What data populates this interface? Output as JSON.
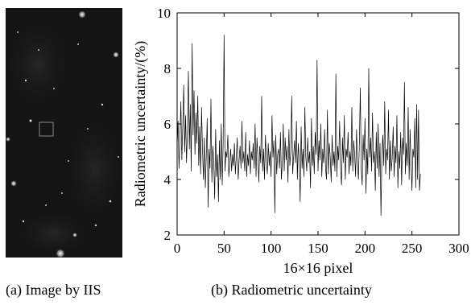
{
  "figure": {
    "caption_a": "(a) Image by IIS",
    "caption_b": "(b) Radiometric uncertainty"
  },
  "colors": {
    "image_background": "#141414",
    "plot_line": "#000000",
    "axis": "#000000",
    "roi_box": "#8a8a8a"
  },
  "chart_data": {
    "type": "line",
    "title": "",
    "xlabel": "16×16 pixel",
    "ylabel": "Radiometric uncertainty/(%)",
    "xlim": [
      0,
      300
    ],
    "ylim": [
      2,
      10
    ],
    "xticks": [
      0,
      50,
      100,
      150,
      200,
      250,
      300
    ],
    "yticks": [
      2,
      4,
      6,
      8,
      10
    ],
    "grid": false,
    "legend": "none",
    "series": [
      {
        "values": [
          5.2,
          6.1,
          4.4,
          5.5,
          6.8,
          4.7,
          5.9,
          7.4,
          5.0,
          6.3,
          4.6,
          5.8,
          7.9,
          5.1,
          6.7,
          4.3,
          8.9,
          5.6,
          7.2,
          4.9,
          6.4,
          5.3,
          7.0,
          4.5,
          5.9,
          4.2,
          6.6,
          5.1,
          4.0,
          5.5,
          3.7,
          4.8,
          6.2,
          3.0,
          5.1,
          4.4,
          6.9,
          3.9,
          5.2,
          4.6,
          3.3,
          5.8,
          4.1,
          4.9,
          3.2,
          5.4,
          4.0,
          6.0,
          3.8,
          5.3,
          9.2,
          4.3,
          5.0,
          4.8,
          5.6,
          4.1,
          4.6,
          5.1,
          4.3,
          4.9,
          4.5,
          5.3,
          4.2,
          4.8,
          5.5,
          4.0,
          4.7,
          5.2,
          4.4,
          6.1,
          4.6,
          5.0,
          4.3,
          5.7,
          4.1,
          4.9,
          4.5,
          5.4,
          4.2,
          5.0,
          4.7,
          5.3,
          4.4,
          6.0,
          4.1,
          5.5,
          4.8,
          3.9,
          5.2,
          4.6,
          7.0,
          4.3,
          5.1,
          4.0,
          5.6,
          4.7,
          4.2,
          5.3,
          4.5,
          5.0,
          4.1,
          6.3,
          4.8,
          5.4,
          2.8,
          5.6,
          4.2,
          4.9,
          5.1,
          4.4,
          5.7,
          4.0,
          4.6,
          6.0,
          4.3,
          5.5,
          4.7,
          5.2,
          3.9,
          5.8,
          4.5,
          5.0,
          7.0,
          4.2,
          4.8,
          5.4,
          4.6,
          6.1,
          4.0,
          5.3,
          4.7,
          3.2,
          5.9,
          4.4,
          5.1,
          4.1,
          6.6,
          4.8,
          4.3,
          5.5,
          4.6,
          5.0,
          3.7,
          6.2,
          4.5,
          5.2,
          4.2,
          5.7,
          4.9,
          8.3,
          4.3,
          5.4,
          4.7,
          6.0,
          4.1,
          5.1,
          4.6,
          5.8,
          4.4,
          4.0,
          6.5,
          4.2,
          5.3,
          4.8,
          3.9,
          5.6,
          4.5,
          5.0,
          4.3,
          7.8,
          4.1,
          5.2,
          4.7,
          6.1,
          4.4,
          3.8,
          5.5,
          4.6,
          6.3,
          4.0,
          5.1,
          4.8,
          5.7,
          4.2,
          5.0,
          4.5,
          6.6,
          4.3,
          5.4,
          4.9,
          4.1,
          5.8,
          4.6,
          4.0,
          5.3,
          7.3,
          4.4,
          3.8,
          5.6,
          4.7,
          6.2,
          3.5,
          5.1,
          4.2,
          8.0,
          4.8,
          5.5,
          4.3,
          6.4,
          4.6,
          5.0,
          3.6,
          5.7,
          4.4,
          6.0,
          4.1,
          5.3,
          2.7,
          4.9,
          5.6,
          4.5,
          6.8,
          4.2,
          5.1,
          4.7,
          6.5,
          4.0,
          5.4,
          4.3,
          4.8,
          5.9,
          4.1,
          5.2,
          4.6,
          6.3,
          3.7,
          5.0,
          4.4,
          5.7,
          3.8,
          5.5,
          4.9,
          7.5,
          4.2,
          5.3,
          4.5,
          6.6,
          4.0,
          5.8,
          4.6,
          3.6,
          5.1,
          4.8,
          6.2,
          3.7,
          6.7,
          4.0,
          6.5,
          3.6,
          4.2
        ]
      }
    ]
  }
}
